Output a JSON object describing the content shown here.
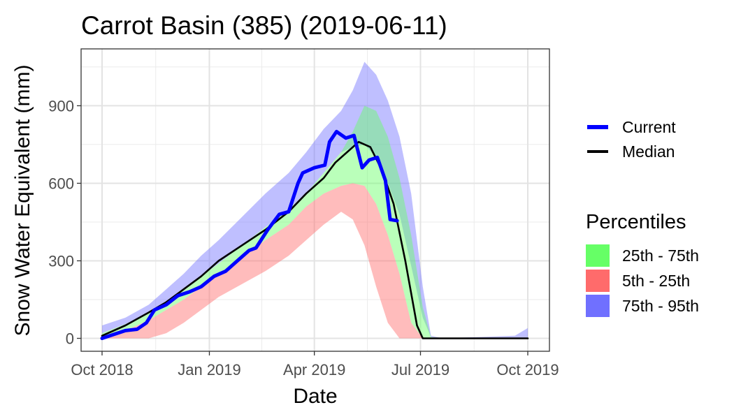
{
  "chart_data": {
    "type": "area",
    "title": "Carrot Basin (385) (2019-06-11)",
    "xlabel": "Date",
    "ylabel": "Snow Water Equivalent (mm)",
    "xlim": [
      "2018-10-01",
      "2019-10-01"
    ],
    "ylim": [
      -50,
      1120
    ],
    "x_ticks": [
      {
        "date": "2018-10-01",
        "label": "Oct 2018"
      },
      {
        "date": "2019-01-01",
        "label": "Jan 2019"
      },
      {
        "date": "2019-04-01",
        "label": "Apr 2019"
      },
      {
        "date": "2019-07-01",
        "label": "Jul 2019"
      },
      {
        "date": "2019-10-01",
        "label": "Oct 2019"
      }
    ],
    "y_ticks": [
      0,
      300,
      600,
      900
    ],
    "grid": true,
    "legend_position": "right",
    "bands": [
      {
        "name": "75th - 95th",
        "color": "#7070ff",
        "x": [
          "2018-10-01",
          "2018-10-21",
          "2018-11-10",
          "2018-11-25",
          "2018-12-10",
          "2018-12-25",
          "2019-01-09",
          "2019-01-29",
          "2019-02-18",
          "2019-03-10",
          "2019-03-25",
          "2019-04-09",
          "2019-04-24",
          "2019-05-04",
          "2019-05-14",
          "2019-05-24",
          "2019-06-03",
          "2019-06-13",
          "2019-06-23",
          "2019-07-03",
          "2019-07-10",
          "2019-07-20",
          "2019-09-20",
          "2019-10-01"
        ],
        "low": [
          20,
          55,
          100,
          140,
          185,
          240,
          290,
          360,
          430,
          500,
          560,
          640,
          720,
          740,
          750,
          700,
          600,
          480,
          280,
          80,
          5,
          0,
          0,
          0
        ],
        "high": [
          50,
          80,
          130,
          190,
          250,
          320,
          380,
          470,
          560,
          640,
          720,
          810,
          880,
          960,
          1070,
          1020,
          920,
          780,
          560,
          200,
          10,
          0,
          10,
          40
        ]
      },
      {
        "name": "25th - 75th",
        "color": "#66ff66",
        "x": [
          "2018-10-01",
          "2018-10-21",
          "2018-11-10",
          "2018-11-25",
          "2018-12-10",
          "2018-12-25",
          "2019-01-09",
          "2019-01-29",
          "2019-02-18",
          "2019-03-10",
          "2019-03-25",
          "2019-04-09",
          "2019-04-24",
          "2019-05-04",
          "2019-05-14",
          "2019-05-24",
          "2019-06-03",
          "2019-06-13",
          "2019-06-23",
          "2019-07-03",
          "2019-07-10",
          "2019-07-20",
          "2019-10-01"
        ],
        "low": [
          5,
          30,
          70,
          110,
          150,
          200,
          250,
          310,
          380,
          440,
          510,
          560,
          590,
          600,
          590,
          520,
          400,
          250,
          60,
          0,
          0,
          0,
          0
        ],
        "high": [
          20,
          55,
          100,
          140,
          185,
          240,
          290,
          360,
          430,
          500,
          560,
          640,
          720,
          800,
          900,
          880,
          780,
          620,
          400,
          120,
          5,
          0,
          0
        ]
      },
      {
        "name": "5th - 25th",
        "color": "#ff6b6b",
        "x": [
          "2018-10-01",
          "2018-10-21",
          "2018-11-10",
          "2018-11-25",
          "2018-12-10",
          "2018-12-25",
          "2019-01-09",
          "2019-01-29",
          "2019-02-18",
          "2019-03-10",
          "2019-03-25",
          "2019-04-09",
          "2019-04-24",
          "2019-05-04",
          "2019-05-14",
          "2019-05-24",
          "2019-06-03",
          "2019-06-13",
          "2019-06-23",
          "2019-07-03",
          "2019-10-01"
        ],
        "low": [
          0,
          0,
          0,
          20,
          60,
          110,
          160,
          210,
          260,
          320,
          380,
          440,
          490,
          460,
          360,
          200,
          60,
          0,
          0,
          0,
          0
        ],
        "high": [
          5,
          30,
          70,
          110,
          150,
          200,
          250,
          310,
          380,
          440,
          510,
          560,
          590,
          600,
          590,
          520,
          400,
          250,
          60,
          0,
          0
        ]
      }
    ],
    "series": [
      {
        "name": "Median",
        "color": "#000000",
        "x": [
          "2018-10-01",
          "2018-10-21",
          "2018-11-10",
          "2018-11-25",
          "2018-12-10",
          "2018-12-25",
          "2019-01-09",
          "2019-01-29",
          "2019-02-18",
          "2019-03-10",
          "2019-03-25",
          "2019-04-09",
          "2019-04-19",
          "2019-04-29",
          "2019-05-09",
          "2019-05-19",
          "2019-05-29",
          "2019-06-08",
          "2019-06-18",
          "2019-06-28",
          "2019-07-03",
          "2019-07-20",
          "2019-10-01"
        ],
        "values": [
          10,
          50,
          100,
          140,
          190,
          240,
          300,
          360,
          420,
          490,
          560,
          620,
          680,
          720,
          760,
          740,
          650,
          520,
          300,
          50,
          0,
          0,
          0
        ]
      },
      {
        "name": "Current",
        "color": "#0000ff",
        "x": [
          "2018-10-01",
          "2018-10-11",
          "2018-10-21",
          "2018-10-31",
          "2018-11-08",
          "2018-11-15",
          "2018-11-25",
          "2018-12-05",
          "2018-12-15",
          "2018-12-25",
          "2019-01-05",
          "2019-01-15",
          "2019-01-25",
          "2019-02-04",
          "2019-02-10",
          "2019-02-20",
          "2019-03-02",
          "2019-03-10",
          "2019-03-18",
          "2019-03-22",
          "2019-04-01",
          "2019-04-10",
          "2019-04-14",
          "2019-04-20",
          "2019-04-28",
          "2019-05-05",
          "2019-05-12",
          "2019-05-18",
          "2019-05-25",
          "2019-06-01",
          "2019-06-05",
          "2019-06-11"
        ],
        "values": [
          0,
          15,
          30,
          35,
          60,
          110,
          130,
          165,
          180,
          200,
          240,
          260,
          300,
          340,
          350,
          420,
          480,
          490,
          600,
          640,
          660,
          670,
          760,
          800,
          775,
          785,
          660,
          690,
          700,
          610,
          460,
          455
        ]
      }
    ],
    "legend_current": "Current",
    "legend_median": "Median",
    "legend_percentiles_title": "Percentiles",
    "legend_bands": [
      {
        "label": "25th - 75th",
        "color": "#66ff66"
      },
      {
        "label": "5th - 25th",
        "color": "#ff6b6b"
      },
      {
        "label": "75th - 95th",
        "color": "#7070ff"
      }
    ]
  }
}
